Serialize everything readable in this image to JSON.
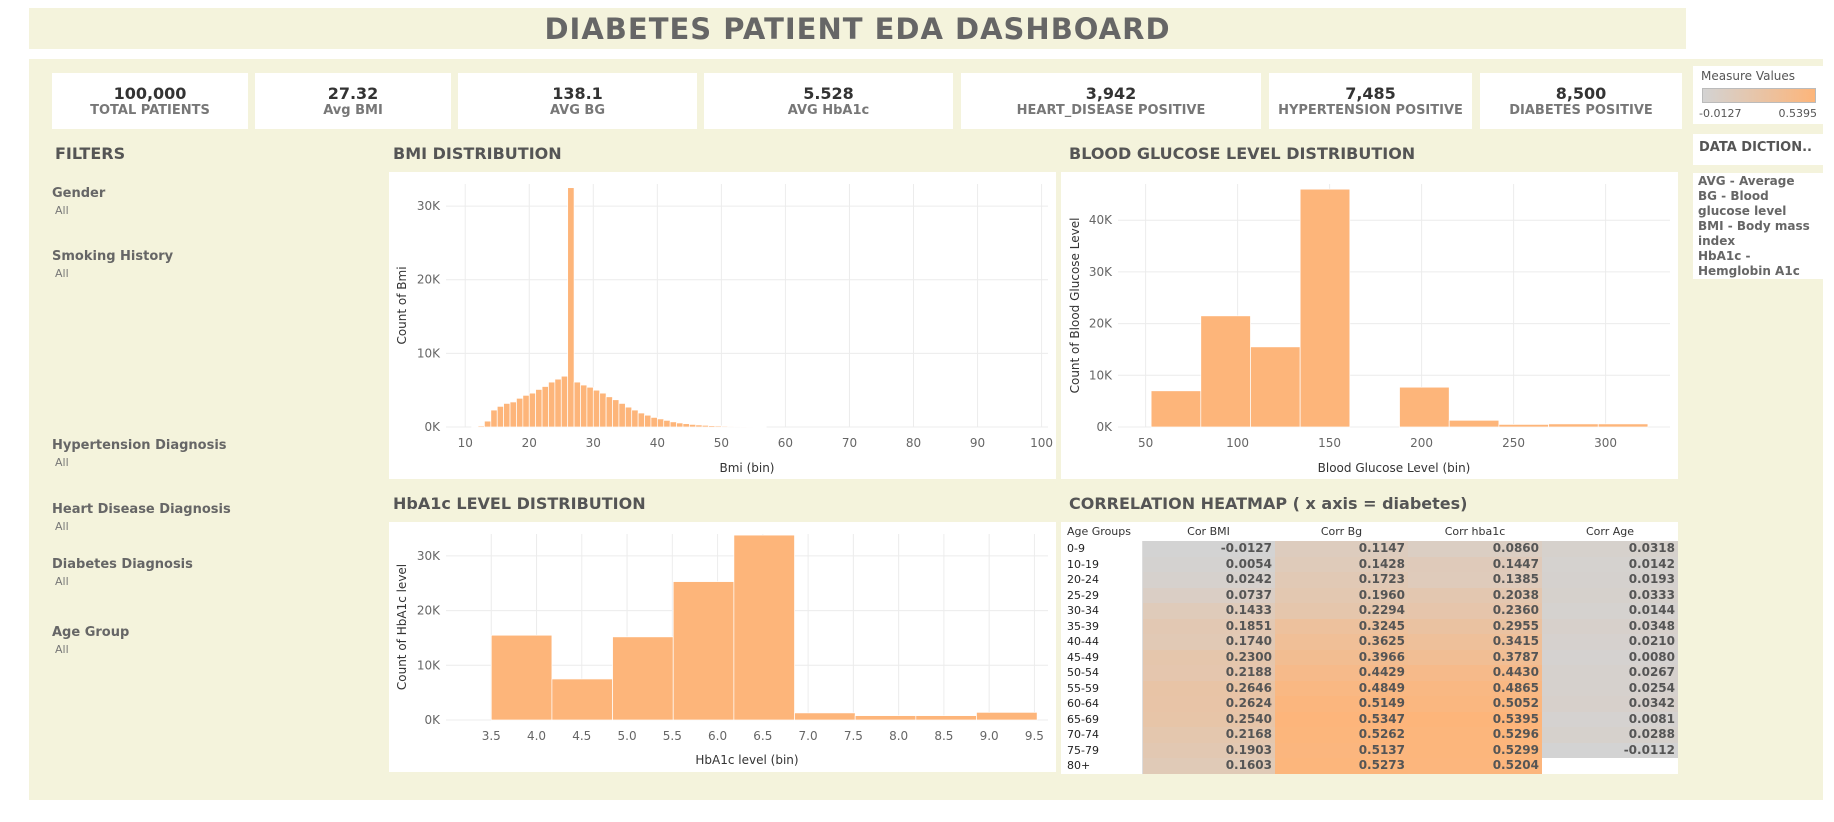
{
  "title": "DIABETES PATIENT EDA DASHBOARD",
  "kpis": [
    {
      "value": "100,000",
      "label": "TOTAL PATIENTS"
    },
    {
      "value": "27.32",
      "label": "Avg BMI"
    },
    {
      "value": "138.1",
      "label": "AVG BG"
    },
    {
      "value": "5.528",
      "label": "AVG HbA1c"
    },
    {
      "value": "3,942",
      "label": "HEART_DISEASE POSITIVE"
    },
    {
      "value": "7,485",
      "label": "HYPERTENSION POSITIVE"
    },
    {
      "value": "8,500",
      "label": "DIABETES POSITIVE"
    }
  ],
  "filters": {
    "title": "FILTERS",
    "items": [
      {
        "label": "Gender",
        "value": "All"
      },
      {
        "label": "Smoking History",
        "value": "All"
      },
      {
        "label": "Hypertension Diagnosis",
        "value": "All"
      },
      {
        "label": "Heart Disease Diagnosis",
        "value": "All"
      },
      {
        "label": "Diabetes Diagnosis",
        "value": "All"
      },
      {
        "label": "Age Group",
        "value": "All"
      }
    ]
  },
  "legend": {
    "title": "Measure Values",
    "min": "-0.0127",
    "max": "0.5395",
    "color_low": "#d3d3d3",
    "color_high": "#fdb57a"
  },
  "dictionary": {
    "title": "DATA DICTION..",
    "lines": [
      "AVG - Average",
      "BG - Blood",
      "glucose level",
      "BMI - Body mass",
      "index",
      "HbA1c -",
      "Hemglobin A1c"
    ]
  },
  "sections": {
    "bmi": "BMI DISTRIBUTION",
    "bg": "BLOOD GLUCOSE LEVEL DISTRIBUTION",
    "hba1c": "HbA1c LEVEL DISTRIBUTION",
    "heatmap": "CORRELATION HEATMAP ( x axis = diabetes)"
  },
  "chart_data": [
    {
      "id": "bmi",
      "type": "bar",
      "xlabel": "Bmi (bin)",
      "ylabel": "Count of Bmi",
      "xlim": [
        7,
        101
      ],
      "ylim": [
        0,
        33000
      ],
      "xticks": [
        10,
        20,
        30,
        40,
        50,
        60,
        70,
        80,
        90,
        100
      ],
      "ytick_labels": [
        "0K",
        "10K",
        "20K",
        "30K"
      ],
      "ytick_values": [
        0,
        10000,
        20000,
        30000
      ],
      "bin_width": 1,
      "color": "#fdb57a",
      "x": [
        11,
        12,
        13,
        14,
        15,
        16,
        17,
        18,
        19,
        20,
        21,
        22,
        23,
        24,
        25,
        26,
        27,
        28,
        29,
        30,
        31,
        32,
        33,
        34,
        35,
        36,
        37,
        38,
        39,
        40,
        41,
        42,
        43,
        44,
        45,
        46,
        47,
        48,
        49,
        50,
        51,
        52,
        53,
        54,
        55,
        56
      ],
      "values": [
        50,
        150,
        800,
        2300,
        2800,
        3200,
        3400,
        3900,
        4300,
        4600,
        5100,
        5500,
        6100,
        6500,
        6900,
        32500,
        6100,
        5700,
        5400,
        5000,
        4600,
        4100,
        3700,
        3200,
        2700,
        2300,
        1900,
        1600,
        1300,
        1100,
        900,
        700,
        550,
        450,
        350,
        280,
        230,
        180,
        150,
        120,
        100,
        80,
        60,
        50,
        40,
        30
      ]
    },
    {
      "id": "bg",
      "type": "bar",
      "xlabel": "Blood Glucose Level (bin)",
      "ylabel": "Count of Blood Glucose Level",
      "xlim": [
        35,
        335
      ],
      "ylim": [
        0,
        47000
      ],
      "xticks": [
        50,
        100,
        150,
        200,
        250,
        300
      ],
      "ytick_labels": [
        "0K",
        "10K",
        "20K",
        "30K",
        "40K"
      ],
      "ytick_values": [
        0,
        10000,
        20000,
        30000,
        40000
      ],
      "bin_width": 27,
      "color": "#fdb57a",
      "x": [
        53,
        80,
        107,
        134,
        188,
        215,
        242,
        269,
        296
      ],
      "values": [
        7000,
        21500,
        15500,
        46000,
        7700,
        1300,
        500,
        600,
        600
      ]
    },
    {
      "id": "hba1c",
      "type": "bar",
      "xlabel": "HbA1c level (bin)",
      "ylabel": "Count of HbA1c level",
      "xlim": [
        3.0,
        9.65
      ],
      "ylim": [
        0,
        34000
      ],
      "xticks": [
        3.5,
        4.0,
        4.5,
        5.0,
        5.5,
        6.0,
        6.5,
        7.0,
        7.5,
        8.0,
        8.5,
        9.0,
        9.5
      ],
      "ytick_labels": [
        "0K",
        "10K",
        "20K",
        "30K"
      ],
      "ytick_values": [
        0,
        10000,
        20000,
        30000
      ],
      "bin_width": 0.67,
      "color": "#fdb57a",
      "x": [
        3.5,
        4.17,
        4.84,
        5.51,
        6.18,
        6.85,
        7.52,
        8.19,
        8.86
      ],
      "values": [
        15500,
        7500,
        15200,
        25300,
        33800,
        1300,
        800,
        800,
        1400
      ]
    },
    {
      "id": "heatmap",
      "type": "heatmap",
      "columns": [
        "Age Groups",
        "Cor BMI",
        "Corr Bg",
        "Corr hba1c",
        "Corr Age"
      ],
      "rows": [
        {
          "label": "0-9",
          "values": [
            "-0.0127",
            "0.1147",
            "0.0860",
            "0.0318"
          ]
        },
        {
          "label": "10-19",
          "values": [
            "0.0054",
            "0.1428",
            "0.1447",
            "0.0142"
          ]
        },
        {
          "label": "20-24",
          "values": [
            "0.0242",
            "0.1723",
            "0.1385",
            "0.0193"
          ]
        },
        {
          "label": "25-29",
          "values": [
            "0.0737",
            "0.1960",
            "0.2038",
            "0.0333"
          ]
        },
        {
          "label": "30-34",
          "values": [
            "0.1433",
            "0.2294",
            "0.2360",
            "0.0144"
          ]
        },
        {
          "label": "35-39",
          "values": [
            "0.1851",
            "0.3245",
            "0.2955",
            "0.0348"
          ]
        },
        {
          "label": "40-44",
          "values": [
            "0.1740",
            "0.3625",
            "0.3415",
            "0.0210"
          ]
        },
        {
          "label": "45-49",
          "values": [
            "0.2300",
            "0.3966",
            "0.3787",
            "0.0080"
          ]
        },
        {
          "label": "50-54",
          "values": [
            "0.2188",
            "0.4429",
            "0.4430",
            "0.0267"
          ]
        },
        {
          "label": "55-59",
          "values": [
            "0.2646",
            "0.4849",
            "0.4865",
            "0.0254"
          ]
        },
        {
          "label": "60-64",
          "values": [
            "0.2624",
            "0.5149",
            "0.5052",
            "0.0342"
          ]
        },
        {
          "label": "65-69",
          "values": [
            "0.2540",
            "0.5347",
            "0.5395",
            "0.0081"
          ]
        },
        {
          "label": "70-74",
          "values": [
            "0.2168",
            "0.5262",
            "0.5296",
            "0.0288"
          ]
        },
        {
          "label": "75-79",
          "values": [
            "0.1903",
            "0.5137",
            "0.5299",
            "-0.0112"
          ]
        },
        {
          "label": "80+",
          "values": [
            "0.1603",
            "0.5273",
            "0.5204",
            ""
          ]
        }
      ],
      "vmin": -0.0127,
      "vmax": 0.5395
    }
  ]
}
